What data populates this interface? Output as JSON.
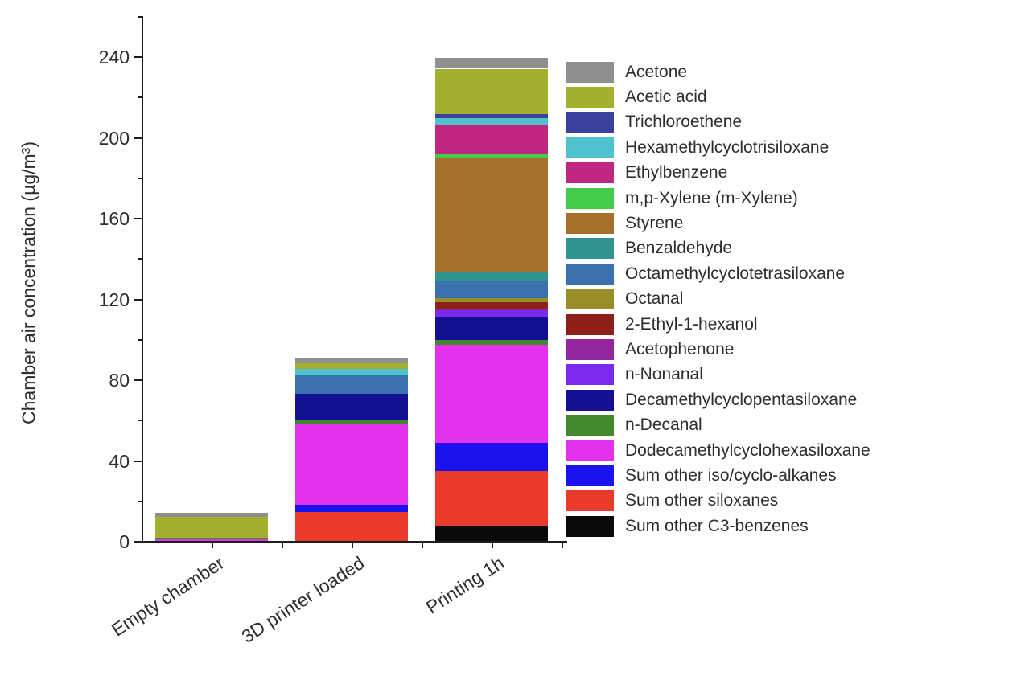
{
  "chart_data": {
    "type": "bar",
    "stacked": true,
    "title": "",
    "xlabel": "",
    "ylabel": "Chamber air concentration (µg/m³)",
    "ylim": [
      0,
      260
    ],
    "y_ticks": [
      0,
      40,
      80,
      120,
      160,
      200,
      240
    ],
    "y_minor_step": 20,
    "grid": false,
    "legend_position": "right",
    "categories": [
      "Empty chamber",
      "3D printer loaded",
      "Printing 1h"
    ],
    "series": [
      {
        "name": "Acetone",
        "color": "#8f8f8f",
        "values": [
          2.0,
          2.2,
          5.5
        ]
      },
      {
        "name": "Acetic acid",
        "color": "#a3af2e",
        "values": [
          10.5,
          2.8,
          22.5
        ]
      },
      {
        "name": "Trichloroethene",
        "color": "#3b3f9d",
        "values": [
          0,
          0,
          2.0
        ]
      },
      {
        "name": "Hexamethylcyclotrisiloxane",
        "color": "#4fc2cd",
        "values": [
          0,
          2.9,
          3.0
        ]
      },
      {
        "name": "Ethylbenzene",
        "color": "#bf2780",
        "values": [
          0,
          0,
          15.0
        ]
      },
      {
        "name": "m,p-Xylene (m-Xylene)",
        "color": "#44cb4c",
        "values": [
          0,
          0,
          2.0
        ]
      },
      {
        "name": "Styrene",
        "color": "#a5702c",
        "values": [
          0,
          0,
          56.3
        ]
      },
      {
        "name": "Benzaldehyde",
        "color": "#31938e",
        "values": [
          0,
          0,
          4.1
        ]
      },
      {
        "name": "Octamethylcyclotetrasiloxane",
        "color": "#3a70ae",
        "values": [
          0,
          9.7,
          8.8
        ]
      },
      {
        "name": "Octanal",
        "color": "#988e29",
        "values": [
          0,
          0,
          2.1
        ]
      },
      {
        "name": "2-Ethyl-1-hexanol",
        "color": "#8e1f19",
        "values": [
          0,
          0,
          3.0
        ]
      },
      {
        "name": "Acetophenone",
        "color": "#93279e",
        "values": [
          0,
          0,
          0.7
        ]
      },
      {
        "name": "n-Nonanal",
        "color": "#7b29ec",
        "values": [
          0,
          0,
          3.4
        ]
      },
      {
        "name": "Decamethylcyclopentasiloxane",
        "color": "#131191",
        "values": [
          0,
          12.5,
          11.4
        ]
      },
      {
        "name": "n-Decanal",
        "color": "#41892c",
        "values": [
          0.7,
          2.4,
          2.6
        ]
      },
      {
        "name": "Dodecamethylcyclohexasiloxane",
        "color": "#e431ee",
        "values": [
          0.8,
          39.9,
          48.5
        ]
      },
      {
        "name": "Sum other iso/cyclo-alkanes",
        "color": "#1a13ee",
        "values": [
          0,
          3.5,
          14.0
        ]
      },
      {
        "name": "Sum other siloxanes",
        "color": "#e93a2c",
        "values": [
          0,
          14.5,
          27.0
        ]
      },
      {
        "name": "Sum other C3-benzenes",
        "color": "#0a0a0a",
        "values": [
          0,
          0,
          7.5
        ]
      }
    ]
  }
}
